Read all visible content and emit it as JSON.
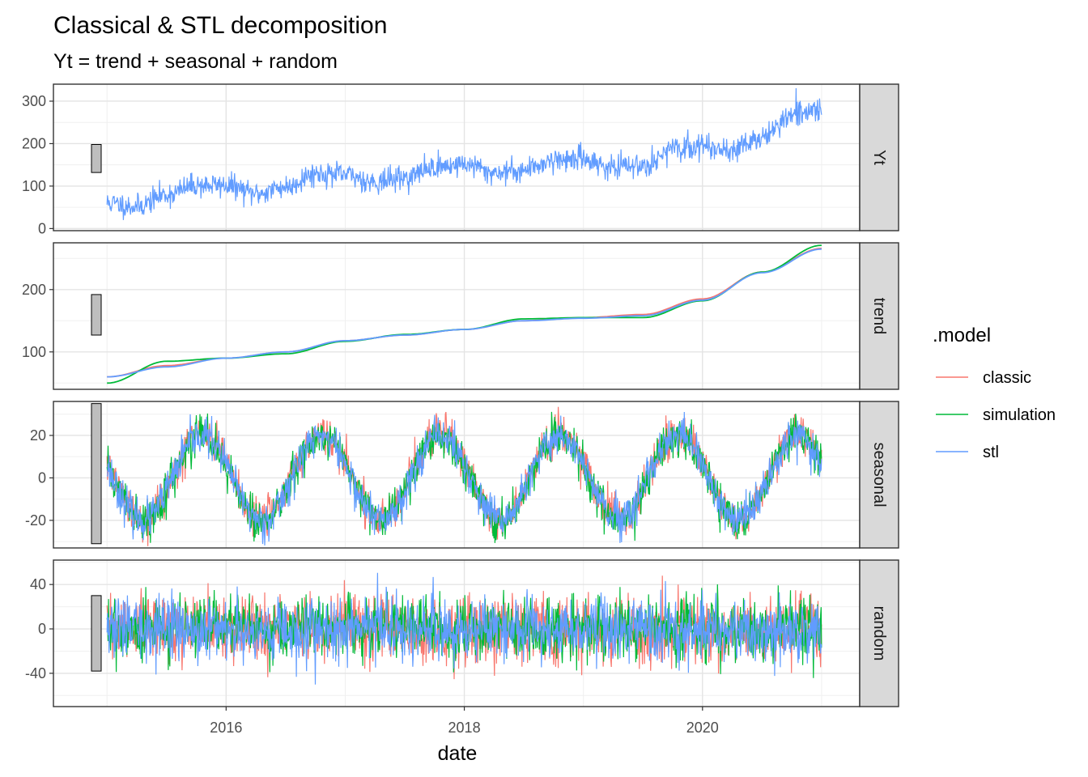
{
  "chart_data": {
    "type": "line",
    "title": "Classical & STL decomposition",
    "subtitle": "Yt = trend + seasonal + random",
    "xlabel": "date",
    "xlim": [
      2014.55,
      2021.32
    ],
    "x_ticks": [
      2016,
      2018,
      2020
    ],
    "x_tick_labels": [
      "2016",
      "2018",
      "2020"
    ],
    "grid": true,
    "legend": {
      "title": ".model",
      "position": "right",
      "entries": [
        {
          "label": "classic",
          "color": "#F8766D"
        },
        {
          "label": "simulation",
          "color": "#00BA38"
        },
        {
          "label": "stl",
          "color": "#619CFF"
        }
      ]
    },
    "panels": [
      {
        "strip": "Yt",
        "ylim": [
          -5,
          340
        ],
        "y_ticks": [
          0,
          100,
          200,
          300
        ],
        "y_tick_labels": [
          "0",
          "100",
          "200",
          "300"
        ],
        "scale_bar": [
          132,
          198
        ],
        "series": [
          {
            "name": "stl",
            "color": "#619CFF",
            "noise": 14,
            "seed": 11,
            "x": [
              2015.0,
              2015.25,
              2015.5,
              2015.75,
              2016.0,
              2016.25,
              2016.5,
              2016.75,
              2017.0,
              2017.25,
              2017.5,
              2017.75,
              2018.0,
              2018.25,
              2018.5,
              2018.75,
              2019.0,
              2019.25,
              2019.5,
              2019.75,
              2020.0,
              2020.25,
              2020.5,
              2020.75,
              2021.0
            ],
            "y": [
              60,
              52,
              80,
              102,
              102,
              82,
              98,
              130,
              126,
              110,
              120,
              145,
              152,
              132,
              138,
              162,
              165,
              142,
              150,
              185,
              195,
              185,
              215,
              265,
              282
            ]
          }
        ]
      },
      {
        "strip": "trend",
        "ylim": [
          40,
          275
        ],
        "y_ticks": [
          100,
          200
        ],
        "y_tick_labels": [
          "100",
          "200"
        ],
        "scale_bar": [
          127,
          192
        ],
        "series": [
          {
            "name": "classic",
            "color": "#F8766D",
            "noise": 0,
            "seed": 1,
            "x": [
              2015.0,
              2015.5,
              2016.0,
              2016.5,
              2017.0,
              2017.5,
              2018.0,
              2018.5,
              2019.0,
              2019.5,
              2020.0,
              2020.5,
              2021.0
            ],
            "y": [
              60,
              78,
              90,
              100,
              118,
              127,
              136,
              150,
              155,
              160,
              185,
              228,
              266
            ]
          },
          {
            "name": "simulation",
            "color": "#00BA38",
            "noise": 0,
            "seed": 2,
            "x": [
              2015.0,
              2015.5,
              2016.0,
              2016.5,
              2017.0,
              2017.5,
              2018.0,
              2018.5,
              2019.0,
              2019.5,
              2020.0,
              2020.5,
              2021.0
            ],
            "y": [
              50,
              85,
              90,
              97,
              117,
              128,
              136,
              153,
              155,
              155,
              182,
              228,
              271
            ]
          },
          {
            "name": "stl",
            "color": "#619CFF",
            "noise": 0,
            "seed": 3,
            "x": [
              2015.0,
              2015.5,
              2016.0,
              2016.5,
              2017.0,
              2017.5,
              2018.0,
              2018.5,
              2019.0,
              2019.5,
              2020.0,
              2020.5,
              2021.0
            ],
            "y": [
              60,
              76,
              90,
              100,
              118,
              127,
              136,
              150,
              154,
              158,
              183,
              227,
              265
            ]
          }
        ]
      },
      {
        "strip": "seasonal",
        "ylim": [
          -33,
          36
        ],
        "y_ticks": [
          -20,
          0,
          20
        ],
        "y_tick_labels": [
          "-20",
          "0",
          "20"
        ],
        "scale_bar": [
          -31,
          35
        ],
        "series": [
          {
            "name": "classic",
            "color": "#F8766D",
            "noise": 5,
            "seed": 21,
            "amp": 20,
            "shift": 1.0,
            "phase": 0.0
          },
          {
            "name": "simulation",
            "color": "#00BA38",
            "noise": 5,
            "seed": 22,
            "amp": 20,
            "shift": 0.0,
            "phase": 0.0
          },
          {
            "name": "stl",
            "color": "#619CFF",
            "noise": 5,
            "seed": 23,
            "amp": 20,
            "shift": 0.0,
            "phase": 0.0
          }
        ]
      },
      {
        "strip": "random",
        "ylim": [
          -70,
          62
        ],
        "y_ticks": [
          -40,
          0,
          40
        ],
        "y_tick_labels": [
          "-40",
          "0",
          "40"
        ],
        "scale_bar": [
          -38,
          30
        ],
        "series": [
          {
            "name": "classic",
            "color": "#F8766D",
            "noise": 15,
            "seed": 31
          },
          {
            "name": "simulation",
            "color": "#00BA38",
            "noise": 14,
            "seed": 32
          },
          {
            "name": "stl",
            "color": "#619CFF",
            "noise": 14,
            "seed": 33
          }
        ]
      }
    ]
  }
}
